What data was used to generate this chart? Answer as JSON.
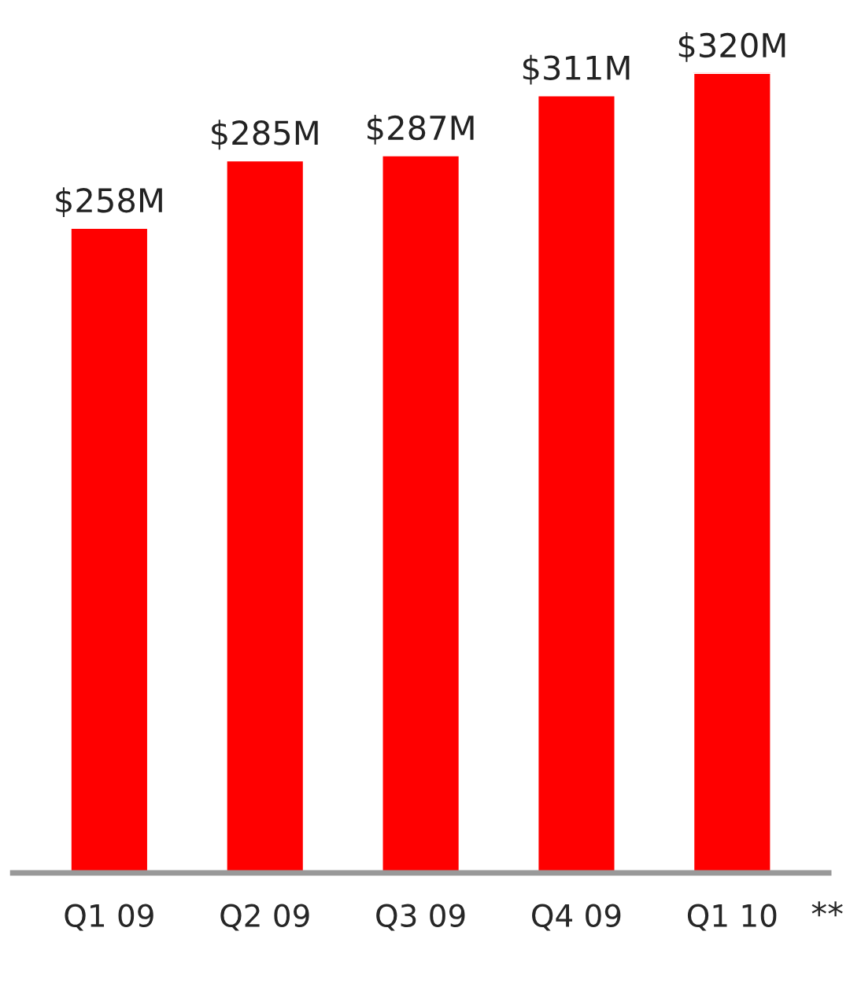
{
  "chart_data": {
    "type": "bar",
    "categories": [
      "Q1 09",
      "Q2 09",
      "Q3 09",
      "Q4 09",
      "Q1 10"
    ],
    "values": [
      258,
      285,
      287,
      311,
      320
    ],
    "value_labels": [
      "$258M",
      "$285M",
      "$287M",
      "$311M",
      "$320M"
    ],
    "color": "#ff0000",
    "annotations": [
      "**"
    ],
    "grid": false,
    "legend": false
  }
}
